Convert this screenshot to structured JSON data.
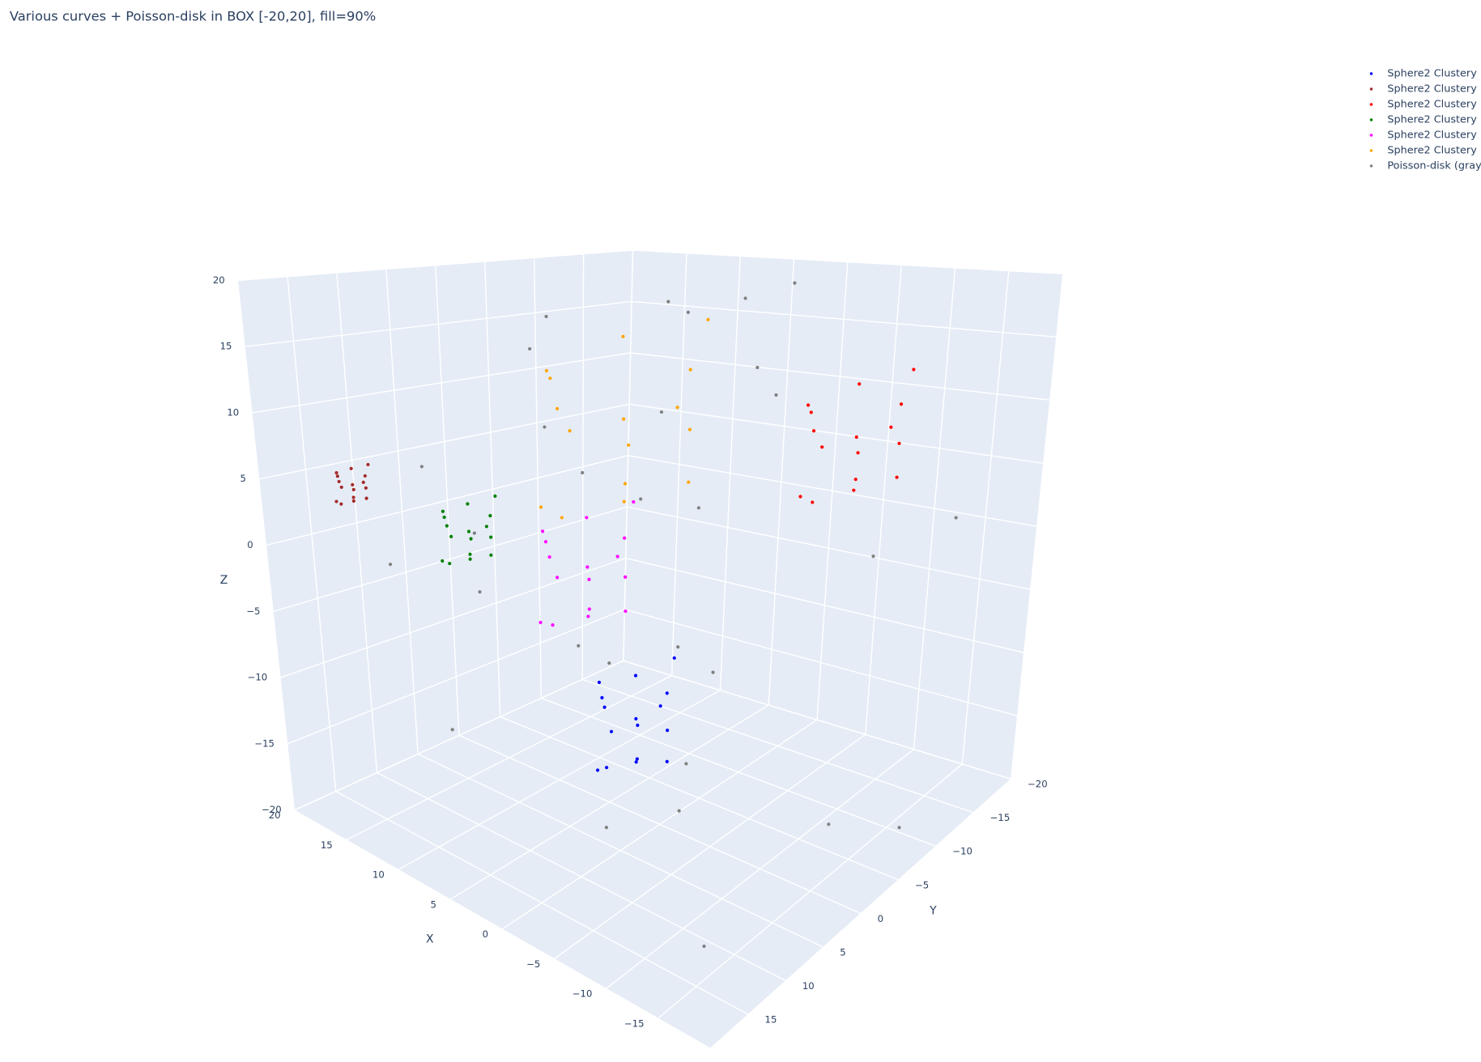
{
  "chart_data": {
    "type": "scatter3d",
    "title": "Various curves + Poisson-disk in BOX [-20,20], fill=90%",
    "x_label": "X",
    "y_label": "Y",
    "z_label": "Z",
    "xlim": [
      -20,
      20
    ],
    "ylim": [
      -20,
      20
    ],
    "zlim": [
      -20,
      20
    ],
    "xticks": [
      {
        "value": -15,
        "label": "−15"
      },
      {
        "value": -10,
        "label": "−10"
      },
      {
        "value": -5,
        "label": "−5"
      },
      0,
      5,
      10,
      15,
      20
    ],
    "yticks": [
      {
        "value": -20,
        "label": "−20"
      },
      {
        "value": -15,
        "label": "−15"
      },
      {
        "value": -10,
        "label": "−10"
      },
      {
        "value": -5,
        "label": "−5"
      },
      0,
      5,
      10,
      15
    ],
    "zticks": [
      {
        "value": -20,
        "label": "−20"
      },
      {
        "value": -15,
        "label": "−15"
      },
      {
        "value": -10,
        "label": "−10"
      },
      {
        "value": -5,
        "label": "−5"
      },
      0,
      5,
      10,
      15,
      20
    ],
    "grid": true,
    "legend": "top-right",
    "series": [
      {
        "name": "Sphere2 Clustery",
        "color": "blue",
        "x": [
          -2,
          1,
          -5,
          -2,
          -2,
          -2,
          -2,
          -0.2,
          -3.8,
          -0.5,
          -3.5,
          2.2,
          -5.9,
          -1.1,
          -2.6,
          0.4
        ],
        "y": [
          5.5,
          5.5,
          5.5,
          8.5,
          2.5,
          5.5,
          5.5,
          7.3,
          4,
          3.4,
          7.3,
          4.6,
          6.7,
          9.1,
          1.6,
          6.1
        ],
        "z": [
          -10,
          -10,
          -10,
          -10,
          -10,
          -7,
          -13,
          -8.5,
          -8.2,
          -11.5,
          -11.8,
          -8.8,
          -11.5,
          -12.7,
          -6.7,
          -13.9
        ]
      },
      {
        "name": "Sphere2 Clustery",
        "color": "brown",
        "x": [
          15,
          16.2,
          13.8,
          15,
          15,
          15,
          15,
          15.7,
          14.3,
          15.6,
          14.4,
          16.7,
          13.4,
          15.4,
          14.8,
          16
        ],
        "y": [
          16,
          16,
          16,
          17.2,
          14.8,
          16,
          16,
          16.7,
          15.4,
          15.2,
          16.7,
          15.6,
          16.5,
          17.4,
          14.4,
          16.2
        ],
        "z": [
          5,
          5,
          5,
          5,
          5,
          6.2,
          3.8,
          5.6,
          5.7,
          4.4,
          4.3,
          5.5,
          4.4,
          3.9,
          6.3,
          3.4
        ]
      },
      {
        "name": "Sphere2 Clustery",
        "color": "red",
        "x": [
          -10,
          -6,
          -14,
          -10,
          -10,
          -10,
          -10,
          -7.6,
          -12.4,
          -8,
          -12,
          -4.4,
          -15.2,
          -8.8,
          -10.8,
          -6.8
        ],
        "y": [
          -10,
          -10,
          -10,
          -6,
          -14,
          -10,
          -10,
          -7.6,
          -12,
          -12.8,
          -7.6,
          -11.2,
          -8.4,
          -5.2,
          -15.2,
          -9.2
        ],
        "z": [
          8,
          8,
          8,
          8,
          8,
          12,
          4,
          10,
          10.4,
          6,
          5.6,
          9.6,
          6,
          4.4,
          12.4,
          2.8
        ]
      },
      {
        "name": "Sphere2 Clustery",
        "color": "green",
        "x": [
          8.8,
          10.8,
          6.8,
          8.8,
          8.8,
          8.8,
          8.8,
          10,
          7.6,
          9.8,
          7.8,
          11.6,
          6.2,
          9.4,
          8.4,
          10.4
        ],
        "y": [
          11,
          11,
          11,
          13,
          9,
          11,
          11,
          12.2,
          10,
          9.6,
          12.2,
          10.4,
          11.8,
          13.4,
          8.4,
          11.4
        ],
        "z": [
          2,
          2,
          2,
          2,
          2,
          4,
          0,
          3,
          3.2,
          1,
          0.8,
          2.8,
          1,
          0.2,
          4.2,
          -0.6
        ]
      },
      {
        "name": "Sphere2 Clustery",
        "color": "magenta",
        "x": [
          1.7,
          5.2,
          -1.8,
          1.7,
          1.7,
          1.7,
          1.7,
          3.8,
          -0.4,
          3.5,
          -0.1,
          6.6,
          -2.9,
          2.8,
          1,
          4.5
        ],
        "y": [
          6.4,
          6.4,
          6.4,
          9.9,
          2.9,
          6.4,
          6.4,
          8.5,
          4.7,
          4,
          8.5,
          5.4,
          7.8,
          10.6,
          1.9,
          7.1
        ],
        "z": [
          0,
          0,
          0,
          0,
          0,
          3.5,
          -3.5,
          1.8,
          2.1,
          -1.8,
          -2.1,
          1.4,
          -1.8,
          -3.2,
          3.9,
          -4.6
        ]
      },
      {
        "name": "Sphere2 Clustery",
        "color": "orange",
        "x": [
          1.3,
          7.3,
          -4.7,
          1.3,
          1.3,
          1.3,
          1.3,
          4.9,
          -2.3,
          4.3,
          -1.7,
          9.7,
          -6.5,
          3.1,
          0.1,
          6.1
        ],
        "y": [
          2.6,
          2.6,
          2.6,
          8.6,
          -3.4,
          2.6,
          2.6,
          6.2,
          -0.4,
          -1.6,
          6.2,
          0.8,
          5,
          9.8,
          -5.2,
          3.8
        ],
        "z": [
          10,
          10,
          10,
          10,
          10,
          16,
          4,
          13,
          13.6,
          7,
          6.4,
          12.4,
          7,
          4.6,
          16.6,
          2.2
        ]
      },
      {
        "name": "Poisson-disk (gray)",
        "color": "gray",
        "x": [
          -15,
          12,
          3,
          -8,
          18,
          -2,
          7,
          -18,
          14,
          -11,
          5,
          -5,
          16,
          -14,
          9,
          0,
          -17,
          11,
          -6,
          2,
          19,
          -9,
          6,
          -13,
          15,
          -3,
          8,
          -19,
          13,
          -1
        ],
        "y": [
          14,
          -17,
          6,
          -3,
          9,
          -12,
          18,
          2,
          -8,
          11,
          -15,
          4,
          -19,
          16,
          -5,
          13,
          -9,
          1,
          -18,
          10,
          -2,
          7,
          -14,
          19,
          3,
          -7,
          15,
          -11,
          -16,
          8
        ],
        "z": [
          -18,
          15,
          -6,
          12,
          -3,
          19,
          8,
          -14,
          2,
          -9,
          17,
          -16,
          5,
          0,
          -12,
          11,
          -19,
          14,
          -4,
          18,
          -8,
          6,
          -15,
          9,
          -1,
          13,
          -11,
          3,
          16,
          -17
        ]
      }
    ]
  }
}
